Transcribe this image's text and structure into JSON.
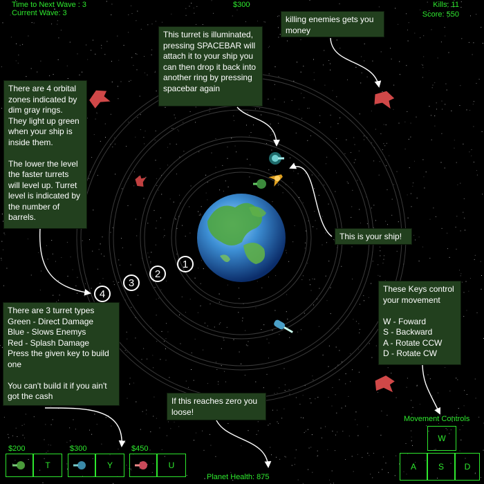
{
  "hud": {
    "time_to_next_wave": "Time to Next Wave : 3",
    "current_wave": "Current Wave: 3",
    "money": "$300",
    "kills": "Kills: 11",
    "score": "Score: 550",
    "planet_health": "Planet Health: 875"
  },
  "tooltips": {
    "orbital_zones": "There are 4 orbital zones indicated by dim gray rings. They light up green when your ship is inside them.\n\nThe lower the level the faster turrets will level up. Turret level is indicated by the number of barrels.",
    "turret_illuminated": "This turret is illuminated, pressing SPACEBAR will attach it to your ship you can then drop it back into another ring by pressing spacebar again",
    "kill_money": "killing enemies gets you money",
    "your_ship": "This is your ship!",
    "turret_types": "There are 3 turret types\nGreen - Direct Damage\nBlue - Slows Enemys\nRed - Splash Damage\nPress the given key to build one\n\nYou can't build it if you ain't got the cash",
    "planet_zero": "If this reaches zero you loose!",
    "keys": "These Keys control your movement\n\nW - Foward\nS  - Backward\nA  - Rotate CCW\nD  - Rotate CW"
  },
  "ring_numbers": [
    "1",
    "2",
    "3",
    "4"
  ],
  "turret_shop": [
    {
      "price": "$200",
      "key": "T",
      "color": "#4a9a3a"
    },
    {
      "price": "$300",
      "key": "Y",
      "color": "#3a8aa8"
    },
    {
      "price": "$450",
      "key": "U",
      "color": "#c84a5a"
    }
  ],
  "movement": {
    "title": "Movement Controls",
    "keys": [
      "W",
      "A",
      "S",
      "D"
    ]
  },
  "colors": {
    "hud_green": "#2ee82e",
    "tooltip_bg": "#22401e",
    "enemy_red": "#d04848"
  }
}
